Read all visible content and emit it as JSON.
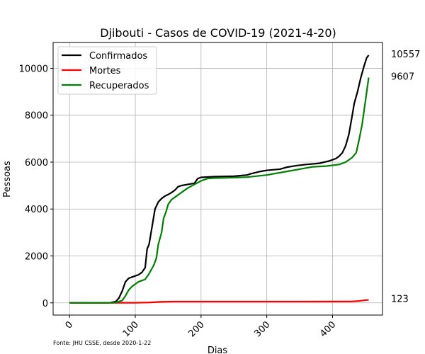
{
  "chart_data": {
    "type": "line",
    "title": "Djibouti - Casos de COVID-19 (2021-4-20)",
    "xlabel": "Dias",
    "ylabel": "Pessoas",
    "xlim": [
      -25,
      476
    ],
    "ylim": [
      -520,
      11100
    ],
    "xticks": [
      0,
      100,
      200,
      300,
      400
    ],
    "yticks": [
      0,
      2000,
      4000,
      6000,
      8000,
      10000
    ],
    "grid": true,
    "legend_position": "top-left",
    "source_note": "Fonte: JHU CSSE, desde 2020-1-22",
    "series": [
      {
        "name": "Confirmados",
        "color": "#000000",
        "end_label": "10557",
        "points": [
          [
            0,
            0
          ],
          [
            50,
            0
          ],
          [
            62,
            10
          ],
          [
            70,
            50
          ],
          [
            75,
            200
          ],
          [
            80,
            500
          ],
          [
            85,
            900
          ],
          [
            90,
            1050
          ],
          [
            95,
            1100
          ],
          [
            100,
            1150
          ],
          [
            105,
            1200
          ],
          [
            110,
            1300
          ],
          [
            115,
            1500
          ],
          [
            118,
            2300
          ],
          [
            121,
            2500
          ],
          [
            124,
            3000
          ],
          [
            127,
            3500
          ],
          [
            130,
            4000
          ],
          [
            135,
            4300
          ],
          [
            140,
            4450
          ],
          [
            145,
            4550
          ],
          [
            150,
            4620
          ],
          [
            155,
            4700
          ],
          [
            160,
            4800
          ],
          [
            165,
            4950
          ],
          [
            170,
            5000
          ],
          [
            180,
            5050
          ],
          [
            190,
            5100
          ],
          [
            195,
            5300
          ],
          [
            200,
            5350
          ],
          [
            220,
            5380
          ],
          [
            250,
            5400
          ],
          [
            270,
            5450
          ],
          [
            275,
            5500
          ],
          [
            290,
            5600
          ],
          [
            300,
            5650
          ],
          [
            320,
            5700
          ],
          [
            330,
            5780
          ],
          [
            345,
            5850
          ],
          [
            360,
            5900
          ],
          [
            380,
            5950
          ],
          [
            395,
            6050
          ],
          [
            405,
            6150
          ],
          [
            410,
            6250
          ],
          [
            415,
            6400
          ],
          [
            420,
            6700
          ],
          [
            425,
            7200
          ],
          [
            430,
            8000
          ],
          [
            433,
            8500
          ],
          [
            438,
            9000
          ],
          [
            443,
            9600
          ],
          [
            448,
            10100
          ],
          [
            452,
            10450
          ],
          [
            455,
            10557
          ]
        ]
      },
      {
        "name": "Mortes",
        "color": "#ff0000",
        "end_label": "123",
        "points": [
          [
            0,
            0
          ],
          [
            100,
            5
          ],
          [
            120,
            15
          ],
          [
            140,
            45
          ],
          [
            160,
            55
          ],
          [
            250,
            56
          ],
          [
            300,
            56
          ],
          [
            350,
            56
          ],
          [
            400,
            57
          ],
          [
            430,
            60
          ],
          [
            440,
            80
          ],
          [
            450,
            115
          ],
          [
            455,
            123
          ]
        ]
      },
      {
        "name": "Recuperados",
        "color": "#008000",
        "end_label": "9607",
        "points": [
          [
            0,
            0
          ],
          [
            60,
            0
          ],
          [
            70,
            10
          ],
          [
            80,
            100
          ],
          [
            85,
            300
          ],
          [
            90,
            550
          ],
          [
            95,
            700
          ],
          [
            100,
            800
          ],
          [
            105,
            900
          ],
          [
            110,
            950
          ],
          [
            115,
            1000
          ],
          [
            120,
            1200
          ],
          [
            125,
            1450
          ],
          [
            128,
            1600
          ],
          [
            132,
            1900
          ],
          [
            135,
            2500
          ],
          [
            140,
            3000
          ],
          [
            143,
            3600
          ],
          [
            147,
            3900
          ],
          [
            150,
            4200
          ],
          [
            155,
            4400
          ],
          [
            160,
            4500
          ],
          [
            170,
            4700
          ],
          [
            180,
            4900
          ],
          [
            190,
            5050
          ],
          [
            200,
            5200
          ],
          [
            210,
            5300
          ],
          [
            220,
            5320
          ],
          [
            240,
            5330
          ],
          [
            270,
            5360
          ],
          [
            300,
            5450
          ],
          [
            330,
            5600
          ],
          [
            350,
            5700
          ],
          [
            370,
            5800
          ],
          [
            390,
            5830
          ],
          [
            410,
            5900
          ],
          [
            420,
            6000
          ],
          [
            430,
            6200
          ],
          [
            436,
            6400
          ],
          [
            440,
            6900
          ],
          [
            445,
            7600
          ],
          [
            450,
            8600
          ],
          [
            455,
            9607
          ]
        ]
      }
    ]
  }
}
